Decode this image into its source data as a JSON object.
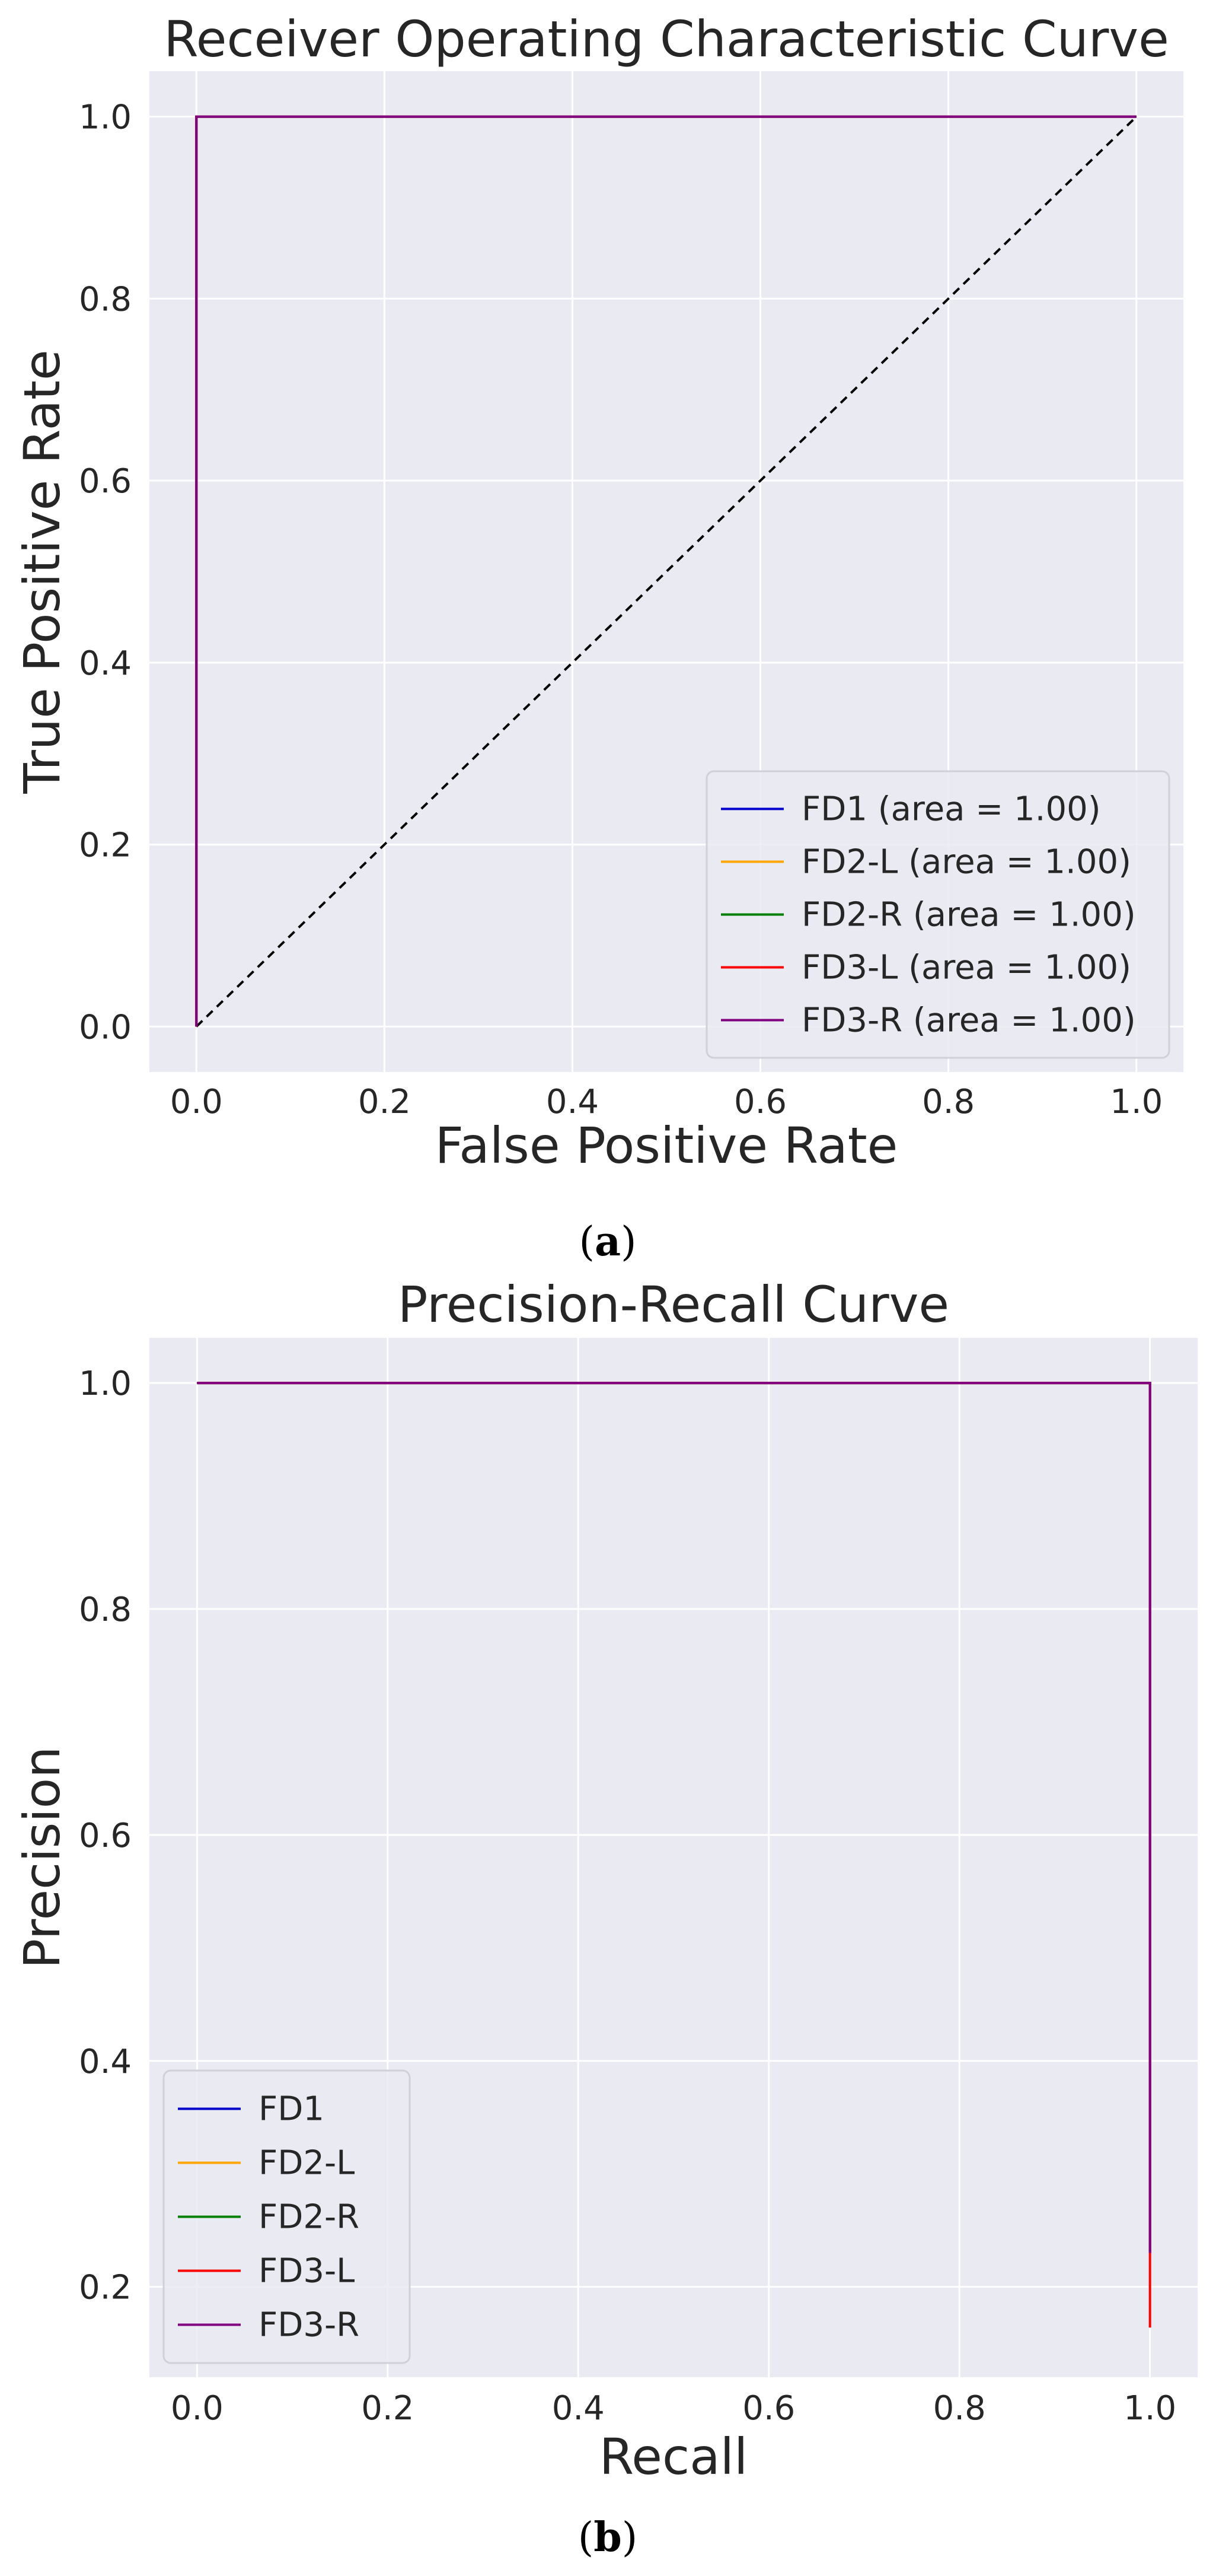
{
  "figure": {
    "panels": [
      {
        "caption_open": "(",
        "caption_letter": "a",
        "caption_close": ")"
      },
      {
        "caption_open": "(",
        "caption_letter": "b",
        "caption_close": ")"
      }
    ]
  },
  "chart_data": [
    {
      "type": "line",
      "title": "Receiver Operating Characteristic Curve",
      "xlabel": "False Positive Rate",
      "ylabel": "True Positive Rate",
      "xlim": [
        -0.05,
        1.05
      ],
      "ylim": [
        -0.05,
        1.05
      ],
      "xticks": [
        0.0,
        0.2,
        0.4,
        0.6,
        0.8,
        1.0
      ],
      "yticks": [
        0.0,
        0.2,
        0.4,
        0.6,
        0.8,
        1.0
      ],
      "tick_labels_x": [
        "0.0",
        "0.2",
        "0.4",
        "0.6",
        "0.8",
        "1.0"
      ],
      "tick_labels_y": [
        "0.0",
        "0.2",
        "0.4",
        "0.6",
        "0.8",
        "1.0"
      ],
      "grid": true,
      "legend_position": "lower-right",
      "series": [
        {
          "name": "FD1 (area = 1.00)",
          "color": "#0000cc",
          "x": [
            0.0,
            0.0,
            1.0
          ],
          "y": [
            0.0,
            1.0,
            1.0
          ]
        },
        {
          "name": "FD2-L (area = 1.00)",
          "color": "#ffa500",
          "x": [
            0.0,
            0.0,
            1.0
          ],
          "y": [
            0.0,
            1.0,
            1.0
          ]
        },
        {
          "name": "FD2-R (area = 1.00)",
          "color": "#008000",
          "x": [
            0.0,
            0.0,
            1.0
          ],
          "y": [
            0.0,
            1.0,
            1.0
          ]
        },
        {
          "name": "FD3-L (area = 1.00)",
          "color": "#ff0000",
          "x": [
            0.0,
            0.0,
            1.0
          ],
          "y": [
            0.0,
            1.0,
            1.0
          ]
        },
        {
          "name": "FD3-R (area = 1.00)",
          "color": "#800080",
          "x": [
            0.0,
            0.0,
            1.0
          ],
          "y": [
            0.0,
            1.0,
            1.0
          ]
        }
      ],
      "reference_line": {
        "color": "#000000",
        "style": "dashed",
        "x": [
          0.0,
          1.0
        ],
        "y": [
          0.0,
          1.0
        ]
      }
    },
    {
      "type": "line",
      "title": "Precision-Recall Curve",
      "xlabel": "Recall",
      "ylabel": "Precision",
      "xlim": [
        -0.05,
        1.05
      ],
      "ylim": [
        0.12,
        1.04
      ],
      "xticks": [
        0.0,
        0.2,
        0.4,
        0.6,
        0.8,
        1.0
      ],
      "yticks": [
        0.2,
        0.4,
        0.6,
        0.8,
        1.0
      ],
      "tick_labels_x": [
        "0.0",
        "0.2",
        "0.4",
        "0.6",
        "0.8",
        "1.0"
      ],
      "tick_labels_y": [
        "0.2",
        "0.4",
        "0.6",
        "0.8",
        "1.0"
      ],
      "grid": true,
      "legend_position": "lower-left",
      "series": [
        {
          "name": "FD1",
          "color": "#0000cc",
          "x": [
            0.0,
            1.0,
            1.0
          ],
          "y": [
            1.0,
            1.0,
            0.23
          ]
        },
        {
          "name": "FD2-L",
          "color": "#ffa500",
          "x": [
            0.0,
            1.0,
            1.0
          ],
          "y": [
            1.0,
            1.0,
            0.23
          ]
        },
        {
          "name": "FD2-R",
          "color": "#008000",
          "x": [
            0.0,
            1.0,
            1.0
          ],
          "y": [
            1.0,
            1.0,
            0.23
          ]
        },
        {
          "name": "FD3-L",
          "color": "#ff0000",
          "x": [
            0.0,
            1.0,
            1.0
          ],
          "y": [
            1.0,
            1.0,
            0.164
          ]
        },
        {
          "name": "FD3-R",
          "color": "#800080",
          "x": [
            0.0,
            1.0,
            1.0
          ],
          "y": [
            1.0,
            1.0,
            0.23
          ]
        }
      ]
    }
  ]
}
